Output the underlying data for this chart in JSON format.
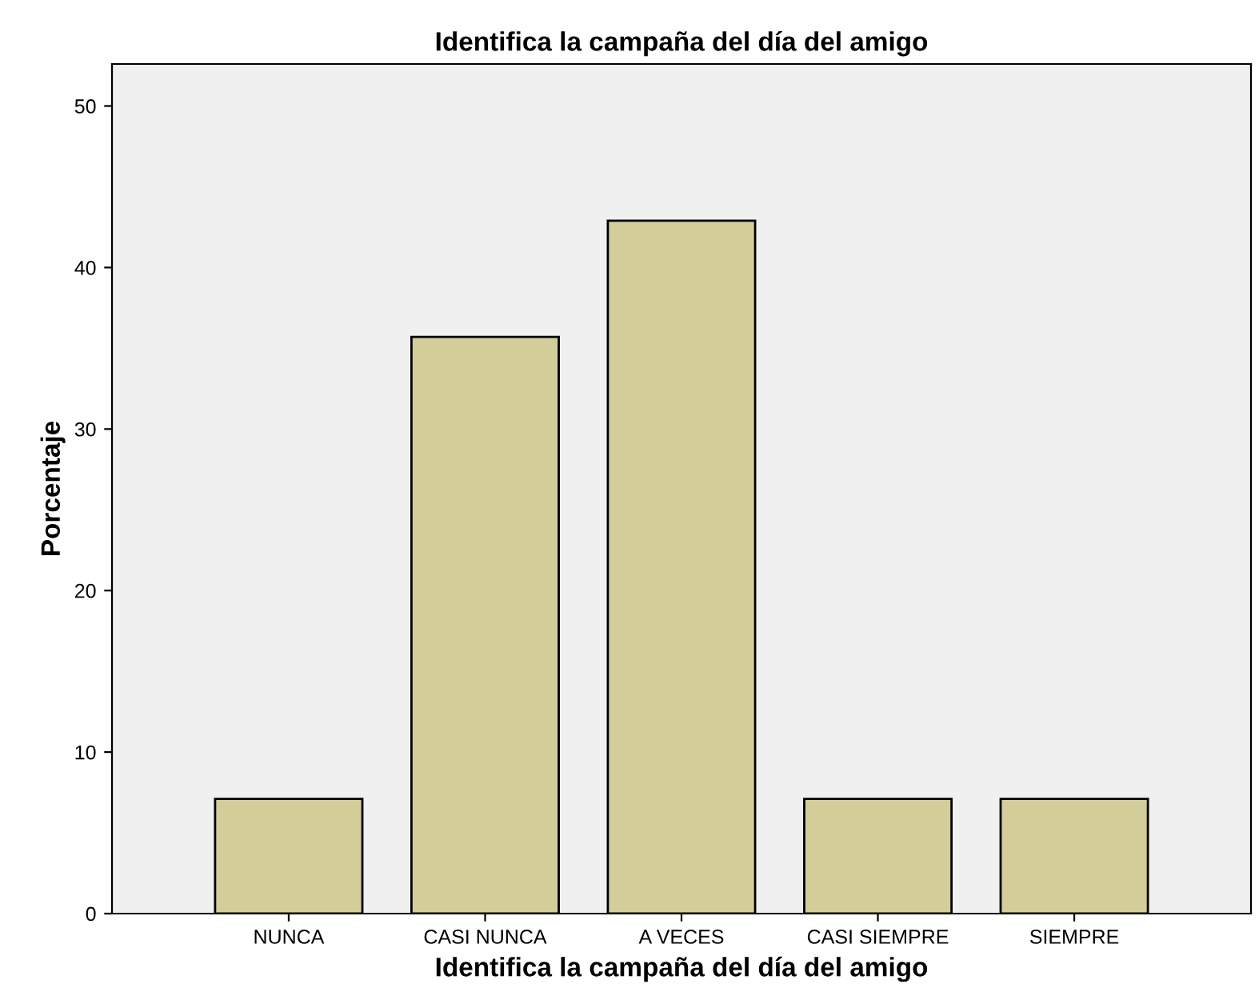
{
  "chart_data": {
    "type": "bar",
    "title": "Identifica la campaña del día del amigo",
    "xlabel": "Identifica la campaña del día del amigo",
    "ylabel": "Porcentaje",
    "categories": [
      "NUNCA",
      "CASI NUNCA",
      "A VECES",
      "CASI SIEMPRE",
      "SIEMPRE"
    ],
    "values": [
      7.1,
      35.7,
      42.9,
      7.1,
      7.1
    ],
    "color": "#d3ce99",
    "ylim": [
      0,
      52.6
    ],
    "yticks": [
      0,
      10,
      20,
      30,
      40,
      50
    ],
    "grid": false
  }
}
